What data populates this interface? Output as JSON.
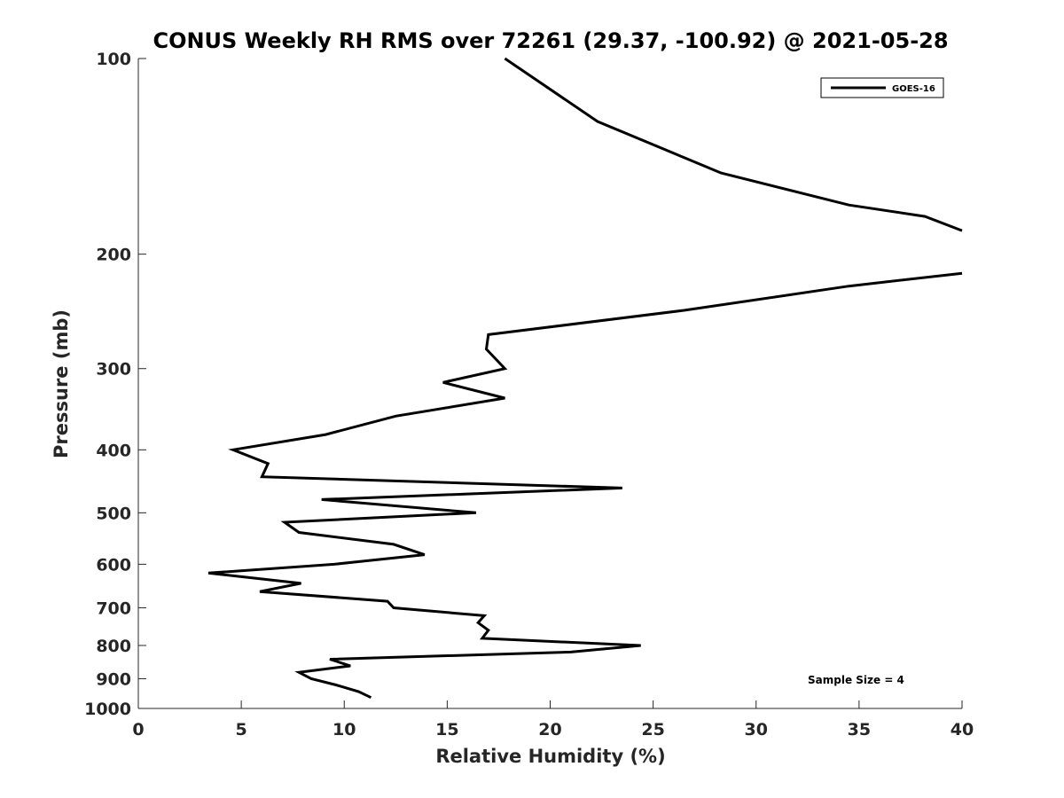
{
  "chart_data": {
    "type": "line",
    "title": "CONUS Weekly RH RMS over 72261 (29.37, -100.92) @ 2021-05-28",
    "xlabel": "Relative Humidity (%)",
    "ylabel": "Pressure (mb)",
    "xlim": [
      0,
      40
    ],
    "ylim": [
      100,
      1000
    ],
    "y_scale": "log",
    "y_reversed": true,
    "xticks": [
      0,
      5,
      10,
      15,
      20,
      25,
      30,
      35,
      40
    ],
    "yticks": [
      100,
      200,
      300,
      400,
      500,
      600,
      700,
      800,
      900,
      1000
    ],
    "grid": false,
    "legend_position": "top-right",
    "annotation": "Sample Size = 4",
    "line_color": "#000000",
    "series": [
      {
        "name": "GOES-16",
        "points": [
          {
            "x": 17.8,
            "y": 100
          },
          {
            "x": 22.3,
            "y": 125
          },
          {
            "x": 28.3,
            "y": 150
          },
          {
            "x": 34.5,
            "y": 168
          },
          {
            "x": 38.2,
            "y": 175
          },
          {
            "x": 40.0,
            "y": 184
          },
          {
            "x": null,
            "y": null
          },
          {
            "x": 40.0,
            "y": 214
          },
          {
            "x": 34.5,
            "y": 224
          },
          {
            "x": 26.5,
            "y": 244
          },
          {
            "x": 17.0,
            "y": 266
          },
          {
            "x": 16.9,
            "y": 280
          },
          {
            "x": 17.8,
            "y": 300
          },
          {
            "x": 14.8,
            "y": 315
          },
          {
            "x": 17.8,
            "y": 333
          },
          {
            "x": 12.5,
            "y": 355
          },
          {
            "x": 9.1,
            "y": 379
          },
          {
            "x": 4.6,
            "y": 400
          },
          {
            "x": 6.3,
            "y": 420
          },
          {
            "x": 6.0,
            "y": 440
          },
          {
            "x": 23.5,
            "y": 458
          },
          {
            "x": 8.9,
            "y": 477
          },
          {
            "x": 16.4,
            "y": 500
          },
          {
            "x": 7.1,
            "y": 517
          },
          {
            "x": 7.8,
            "y": 536
          },
          {
            "x": 12.4,
            "y": 559
          },
          {
            "x": 13.9,
            "y": 580
          },
          {
            "x": 9.5,
            "y": 600
          },
          {
            "x": 3.4,
            "y": 619
          },
          {
            "x": 7.9,
            "y": 642
          },
          {
            "x": 5.9,
            "y": 661
          },
          {
            "x": 12.1,
            "y": 684
          },
          {
            "x": 12.4,
            "y": 700
          },
          {
            "x": 16.8,
            "y": 720
          },
          {
            "x": 16.5,
            "y": 738
          },
          {
            "x": 17.0,
            "y": 758
          },
          {
            "x": 16.7,
            "y": 780
          },
          {
            "x": 24.4,
            "y": 800
          },
          {
            "x": 21.0,
            "y": 819
          },
          {
            "x": 9.3,
            "y": 840
          },
          {
            "x": 10.3,
            "y": 860
          },
          {
            "x": 7.8,
            "y": 880
          },
          {
            "x": 8.4,
            "y": 900
          },
          {
            "x": 9.6,
            "y": 920
          },
          {
            "x": 10.7,
            "y": 942
          },
          {
            "x": 11.3,
            "y": 962
          }
        ]
      }
    ]
  }
}
